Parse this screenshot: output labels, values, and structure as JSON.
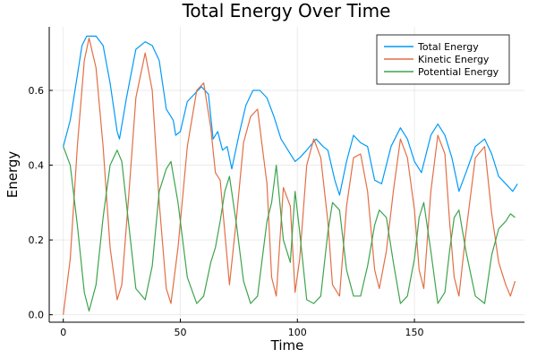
{
  "chart_data": {
    "type": "line",
    "title": "Total Energy Over Time",
    "xlabel": "Time",
    "ylabel": "Energy",
    "xlim": [
      -6,
      197
    ],
    "ylim": [
      -0.02,
      0.77
    ],
    "x_ticks": [
      0,
      50,
      100,
      150
    ],
    "y_ticks": [
      0.0,
      0.2,
      0.4,
      0.6
    ],
    "x_tick_labels": [
      "0",
      "50",
      "100",
      "150"
    ],
    "y_tick_labels": [
      "0.0",
      "0.2",
      "0.4",
      "0.6"
    ],
    "grid": true,
    "legend_position": "top-right",
    "series": [
      {
        "name": "Total Energy",
        "color": "#009af9",
        "points": [
          [
            0,
            0.45
          ],
          [
            3,
            0.52
          ],
          [
            6,
            0.64
          ],
          [
            8,
            0.72
          ],
          [
            10,
            0.745
          ],
          [
            14,
            0.745
          ],
          [
            17,
            0.72
          ],
          [
            20,
            0.62
          ],
          [
            23,
            0.49
          ],
          [
            24,
            0.47
          ],
          [
            27,
            0.58
          ],
          [
            31,
            0.71
          ],
          [
            35,
            0.73
          ],
          [
            38,
            0.72
          ],
          [
            41,
            0.68
          ],
          [
            44,
            0.55
          ],
          [
            47,
            0.52
          ],
          [
            48,
            0.48
          ],
          [
            50,
            0.49
          ],
          [
            53,
            0.57
          ],
          [
            56,
            0.59
          ],
          [
            59,
            0.61
          ],
          [
            62,
            0.59
          ],
          [
            64,
            0.47
          ],
          [
            66,
            0.49
          ],
          [
            68,
            0.44
          ],
          [
            70,
            0.45
          ],
          [
            72,
            0.39
          ],
          [
            75,
            0.48
          ],
          [
            78,
            0.56
          ],
          [
            81,
            0.6
          ],
          [
            84,
            0.6
          ],
          [
            87,
            0.58
          ],
          [
            90,
            0.53
          ],
          [
            93,
            0.47
          ],
          [
            96,
            0.44
          ],
          [
            99,
            0.41
          ],
          [
            101,
            0.42
          ],
          [
            104,
            0.44
          ],
          [
            108,
            0.47
          ],
          [
            111,
            0.45
          ],
          [
            113,
            0.44
          ],
          [
            116,
            0.36
          ],
          [
            118,
            0.32
          ],
          [
            121,
            0.41
          ],
          [
            124,
            0.48
          ],
          [
            127,
            0.46
          ],
          [
            130,
            0.45
          ],
          [
            133,
            0.36
          ],
          [
            136,
            0.35
          ],
          [
            140,
            0.45
          ],
          [
            144,
            0.5
          ],
          [
            147,
            0.47
          ],
          [
            150,
            0.41
          ],
          [
            153,
            0.38
          ],
          [
            157,
            0.48
          ],
          [
            160,
            0.51
          ],
          [
            163,
            0.48
          ],
          [
            166,
            0.42
          ],
          [
            169,
            0.33
          ],
          [
            172,
            0.38
          ],
          [
            176,
            0.45
          ],
          [
            180,
            0.47
          ],
          [
            183,
            0.43
          ],
          [
            186,
            0.37
          ],
          [
            189,
            0.35
          ],
          [
            192,
            0.33
          ],
          [
            194,
            0.35
          ]
        ]
      },
      {
        "name": "Kinetic Energy",
        "color": "#e26f46",
        "points": [
          [
            0,
            0.0
          ],
          [
            3,
            0.15
          ],
          [
            6,
            0.45
          ],
          [
            9,
            0.68
          ],
          [
            11,
            0.74
          ],
          [
            14,
            0.66
          ],
          [
            17,
            0.45
          ],
          [
            20,
            0.18
          ],
          [
            23,
            0.04
          ],
          [
            25,
            0.08
          ],
          [
            28,
            0.32
          ],
          [
            31,
            0.58
          ],
          [
            35,
            0.7
          ],
          [
            38,
            0.6
          ],
          [
            41,
            0.3
          ],
          [
            44,
            0.07
          ],
          [
            46,
            0.03
          ],
          [
            49,
            0.18
          ],
          [
            53,
            0.45
          ],
          [
            57,
            0.6
          ],
          [
            60,
            0.62
          ],
          [
            63,
            0.5
          ],
          [
            65,
            0.38
          ],
          [
            67,
            0.36
          ],
          [
            69,
            0.22
          ],
          [
            71,
            0.08
          ],
          [
            74,
            0.26
          ],
          [
            77,
            0.46
          ],
          [
            80,
            0.53
          ],
          [
            83,
            0.55
          ],
          [
            85,
            0.45
          ],
          [
            87,
            0.35
          ],
          [
            89,
            0.1
          ],
          [
            91,
            0.05
          ],
          [
            94,
            0.34
          ],
          [
            97,
            0.29
          ],
          [
            99,
            0.06
          ],
          [
            101,
            0.15
          ],
          [
            104,
            0.4
          ],
          [
            107,
            0.47
          ],
          [
            110,
            0.42
          ],
          [
            113,
            0.25
          ],
          [
            115,
            0.08
          ],
          [
            118,
            0.05
          ],
          [
            121,
            0.29
          ],
          [
            124,
            0.42
          ],
          [
            127,
            0.43
          ],
          [
            130,
            0.33
          ],
          [
            133,
            0.12
          ],
          [
            135,
            0.07
          ],
          [
            138,
            0.17
          ],
          [
            141,
            0.33
          ],
          [
            144,
            0.47
          ],
          [
            147,
            0.42
          ],
          [
            150,
            0.28
          ],
          [
            152,
            0.12
          ],
          [
            154,
            0.07
          ],
          [
            157,
            0.33
          ],
          [
            160,
            0.48
          ],
          [
            163,
            0.43
          ],
          [
            165,
            0.25
          ],
          [
            167,
            0.1
          ],
          [
            169,
            0.05
          ],
          [
            172,
            0.22
          ],
          [
            176,
            0.42
          ],
          [
            180,
            0.45
          ],
          [
            183,
            0.27
          ],
          [
            186,
            0.14
          ],
          [
            189,
            0.08
          ],
          [
            191,
            0.05
          ],
          [
            193,
            0.09
          ]
        ]
      },
      {
        "name": "Potential Energy",
        "color": "#3da44d",
        "points": [
          [
            0,
            0.45
          ],
          [
            3,
            0.4
          ],
          [
            6,
            0.24
          ],
          [
            9,
            0.06
          ],
          [
            11,
            0.01
          ],
          [
            14,
            0.08
          ],
          [
            17,
            0.26
          ],
          [
            20,
            0.4
          ],
          [
            23,
            0.44
          ],
          [
            25,
            0.41
          ],
          [
            28,
            0.24
          ],
          [
            31,
            0.07
          ],
          [
            35,
            0.04
          ],
          [
            38,
            0.13
          ],
          [
            41,
            0.33
          ],
          [
            44,
            0.39
          ],
          [
            46,
            0.41
          ],
          [
            49,
            0.3
          ],
          [
            53,
            0.1
          ],
          [
            57,
            0.03
          ],
          [
            60,
            0.05
          ],
          [
            63,
            0.14
          ],
          [
            65,
            0.18
          ],
          [
            67,
            0.25
          ],
          [
            69,
            0.33
          ],
          [
            71,
            0.37
          ],
          [
            74,
            0.24
          ],
          [
            77,
            0.09
          ],
          [
            80,
            0.03
          ],
          [
            83,
            0.05
          ],
          [
            85,
            0.15
          ],
          [
            87,
            0.25
          ],
          [
            89,
            0.3
          ],
          [
            91,
            0.4
          ],
          [
            94,
            0.2
          ],
          [
            97,
            0.14
          ],
          [
            99,
            0.33
          ],
          [
            101,
            0.22
          ],
          [
            104,
            0.04
          ],
          [
            107,
            0.03
          ],
          [
            110,
            0.05
          ],
          [
            113,
            0.22
          ],
          [
            115,
            0.3
          ],
          [
            118,
            0.28
          ],
          [
            121,
            0.12
          ],
          [
            124,
            0.05
          ],
          [
            127,
            0.05
          ],
          [
            130,
            0.13
          ],
          [
            133,
            0.24
          ],
          [
            135,
            0.28
          ],
          [
            138,
            0.26
          ],
          [
            141,
            0.14
          ],
          [
            144,
            0.03
          ],
          [
            147,
            0.05
          ],
          [
            150,
            0.15
          ],
          [
            152,
            0.26
          ],
          [
            154,
            0.3
          ],
          [
            157,
            0.17
          ],
          [
            160,
            0.03
          ],
          [
            163,
            0.06
          ],
          [
            165,
            0.17
          ],
          [
            167,
            0.26
          ],
          [
            169,
            0.28
          ],
          [
            172,
            0.17
          ],
          [
            176,
            0.05
          ],
          [
            180,
            0.03
          ],
          [
            183,
            0.16
          ],
          [
            186,
            0.23
          ],
          [
            189,
            0.25
          ],
          [
            191,
            0.27
          ],
          [
            193,
            0.26
          ]
        ]
      }
    ]
  }
}
